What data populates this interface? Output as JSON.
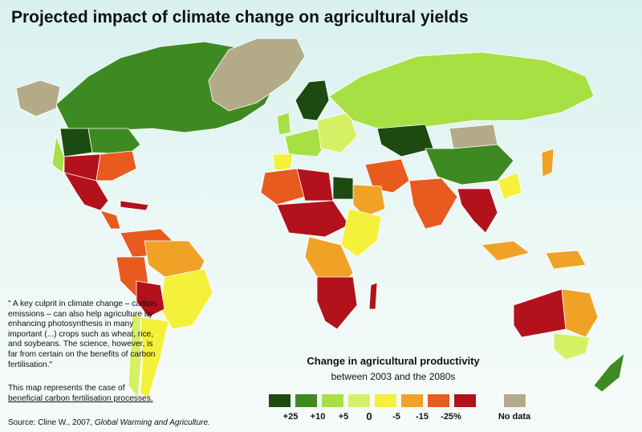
{
  "title": "Projected impact of climate change on agricultural yields",
  "colors": {
    "plus25": "#1d4a10",
    "plus10": "#3e8a22",
    "plus5": "#a6e043",
    "zero": "#d6f065",
    "minus5": "#f5f03a",
    "minus15": "#f0a226",
    "minus25_light": "#e85a1e",
    "minus25": "#b3111c",
    "no_data": "#b3ab88",
    "ocean": "#dff3f1"
  },
  "quote": "\" A key culprit in climate change – carbon emissions – can also help agriculture by enhancing photosynthesis in many important (...) crops such as wheat, rice, and soybeans. The science, however, is far from certain on the benefits of carbon fertilisation.\"",
  "note": {
    "text": "This map represents the case of",
    "link": "beneficial carbon fertilisation processes."
  },
  "source": {
    "prefix": "Source: Cline W., 2007,",
    "work": "Global Warming and Agriculture."
  },
  "legend": {
    "title": "Change in agricultural productivity",
    "subtitle": "between 2003 and the 2080s",
    "labels": [
      "+25",
      "+10",
      "+5",
      "0",
      "-5",
      "-15",
      "-25%",
      "No data"
    ]
  }
}
